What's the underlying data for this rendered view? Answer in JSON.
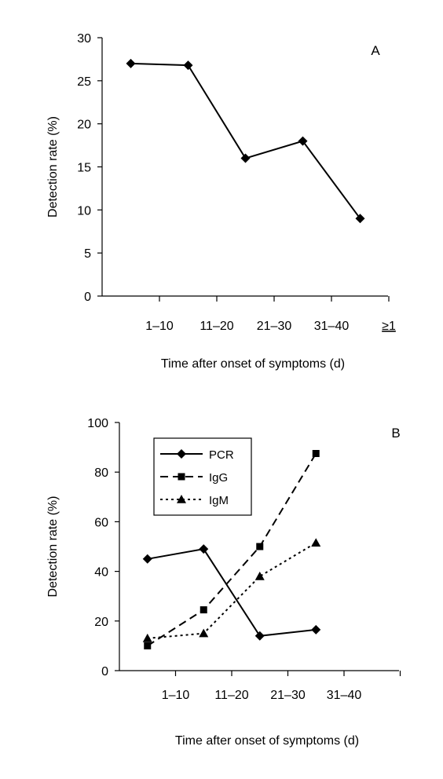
{
  "chart_data": [
    {
      "type": "line",
      "panel_label": "A",
      "xlabel": "Time after onset of symptoms (d)",
      "ylabel": "Detection rate (%)",
      "ylim": [
        0,
        30
      ],
      "yticks": [
        "0",
        "5",
        "10",
        "15",
        "20",
        "25",
        "30"
      ],
      "categories": [
        "1–10",
        "11–20",
        "21–30",
        "31–40",
        "≥1"
      ],
      "legend": "none",
      "grid": false,
      "series": [
        {
          "values": [
            27,
            26.8,
            16,
            18,
            9
          ],
          "marker": "diamond",
          "line": "solid"
        }
      ]
    },
    {
      "type": "line",
      "panel_label": "B",
      "xlabel": "Time after onset of symptoms (d)",
      "ylabel": "Detection rate (%)",
      "ylim": [
        0,
        100
      ],
      "yticks": [
        "0",
        "20",
        "40",
        "60",
        "80",
        "100"
      ],
      "categories": [
        "1–10",
        "11–20",
        "21–30",
        "31–40"
      ],
      "legend": "top-left",
      "grid": false,
      "series": [
        {
          "name": "PCR",
          "values": [
            45,
            49,
            14,
            16.5
          ],
          "marker": "diamond",
          "line": "solid"
        },
        {
          "name": "IgG",
          "values": [
            10,
            24.5,
            50,
            87.5
          ],
          "marker": "square",
          "line": "dashed"
        },
        {
          "name": "IgM",
          "values": [
            13,
            15,
            38,
            51.5
          ],
          "marker": "triangle",
          "line": "dotted"
        }
      ]
    }
  ]
}
